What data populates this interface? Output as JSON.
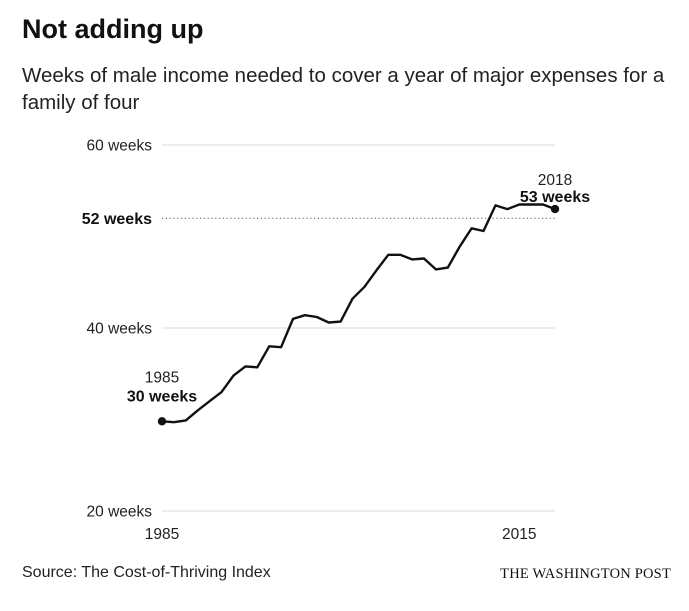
{
  "header": {
    "title": "Not adding up",
    "subtitle": "Weeks of male income needed to cover a year of major expenses for a family of four"
  },
  "footer": {
    "source": "Source: The Cost-of-Thriving Index",
    "credit": "THE WASHINGTON POST"
  },
  "chart_data": {
    "type": "line",
    "title": "Not adding up",
    "subtitle": "Weeks of male income needed to cover a year of major expenses for a family of four",
    "xlabel": "",
    "ylabel": "",
    "xlim": [
      1985,
      2018
    ],
    "ylim": [
      20,
      60
    ],
    "grid": true,
    "x_ticks": [
      {
        "value": 1985,
        "label": "1985"
      },
      {
        "value": 2015,
        "label": "2015"
      }
    ],
    "y_ticks": [
      {
        "value": 60,
        "label": "60 weeks"
      },
      {
        "value": 40,
        "label": "40 weeks"
      },
      {
        "value": 20,
        "label": "20 weeks"
      }
    ],
    "reference_line": {
      "value": 52,
      "label": "52 weeks",
      "style": "dotted"
    },
    "series": [
      {
        "color": "#111111",
        "x": [
          1985,
          1986,
          1987,
          1988,
          1989,
          1990,
          1991,
          1992,
          1993,
          1994,
          1995,
          1996,
          1997,
          1998,
          1999,
          2000,
          2001,
          2002,
          2003,
          2004,
          2005,
          2006,
          2007,
          2008,
          2009,
          2010,
          2011,
          2012,
          2013,
          2014,
          2015,
          2016,
          2017,
          2018
        ],
        "y": [
          29.8,
          29.7,
          29.9,
          31.0,
          32.0,
          33.0,
          34.8,
          35.8,
          35.7,
          38.0,
          37.9,
          41.0,
          41.4,
          41.2,
          40.6,
          40.7,
          43.2,
          44.5,
          46.3,
          48.0,
          48.0,
          47.5,
          47.6,
          46.4,
          46.6,
          48.9,
          50.9,
          50.6,
          53.4,
          53.0,
          53.5,
          53.5,
          53.5,
          53.0
        ]
      }
    ],
    "annotations": [
      {
        "x": 1985,
        "y": 29.8,
        "year": "1985",
        "value_label": "30 weeks"
      },
      {
        "x": 2018,
        "y": 53.0,
        "year": "2018",
        "value_label": "53 weeks"
      }
    ],
    "colors": {
      "line": "#111111",
      "grid": "#d9d9d9",
      "reference": "#555555"
    }
  }
}
